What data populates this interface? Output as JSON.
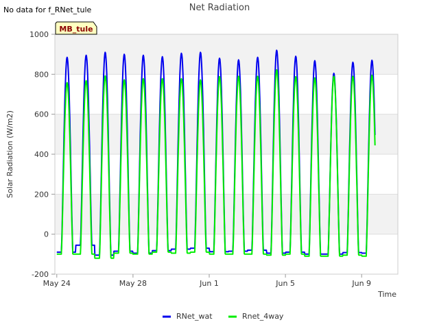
{
  "chart_data": {
    "type": "line",
    "title": "Net Radiation",
    "no_data_note": "No data for f_RNet_tule",
    "site_badge": "MB_tule",
    "xlabel": "Time",
    "ylabel": "Solar Radiation (W/m2)",
    "ylim": [
      -200,
      1000
    ],
    "yticks": [
      -200,
      0,
      200,
      400,
      600,
      800,
      1000
    ],
    "xlim_days": [
      -0.1,
      17.9
    ],
    "xticks": [
      {
        "label": "May 24",
        "day": 0
      },
      {
        "label": "May 28",
        "day": 4
      },
      {
        "label": "Jun 1",
        "day": 8
      },
      {
        "label": "Jun 5",
        "day": 12
      },
      {
        "label": "Jun 9",
        "day": 16
      }
    ],
    "x_origin": "May 24 00:00",
    "series": [
      {
        "name": "RNet_wat",
        "color": "#0000ee",
        "daily_peaks": [
          885,
          895,
          910,
          900,
          895,
          888,
          905,
          910,
          880,
          872,
          885,
          920,
          890,
          868,
          805,
          860,
          870
        ],
        "nightly_min": [
          -90,
          -55,
          -105,
          -85,
          -95,
          -82,
          -75,
          -70,
          -88,
          -85,
          -80,
          -95,
          -90,
          -100,
          -100,
          -92,
          -95
        ]
      },
      {
        "name": "Rnet_4way",
        "color": "#00ee00",
        "daily_peaks": [
          758,
          768,
          792,
          772,
          778,
          778,
          778,
          772,
          788,
          790,
          790,
          822,
          788,
          782,
          790,
          790,
          795
        ],
        "nightly_min": [
          -100,
          -100,
          -120,
          -95,
          -100,
          -90,
          -95,
          -90,
          -100,
          -100,
          -100,
          -105,
          -100,
          -110,
          -110,
          -105,
          -110
        ]
      }
    ],
    "legend_position": "bottom-center"
  }
}
